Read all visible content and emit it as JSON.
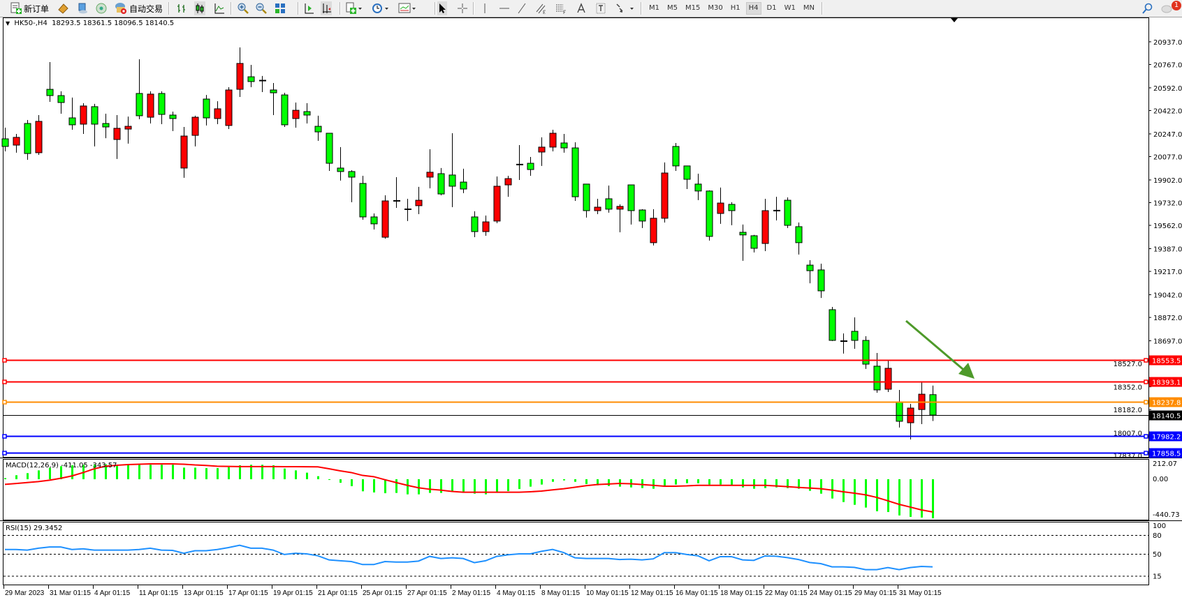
{
  "toolbar": {
    "new_order": "新订单",
    "auto_trading": "自动交易",
    "timeframes": [
      "M1",
      "M5",
      "M15",
      "M30",
      "H1",
      "H4",
      "D1",
      "W1",
      "MN"
    ],
    "active_timeframe": "H4",
    "notification_count": "1"
  },
  "chart": {
    "header": "HK50-,H4  18293.5 18361.5 18096.5 18140.5"
  },
  "chart_data": {
    "type": "candlestick",
    "symbol": "HK50-",
    "timeframe": "H4",
    "colors": {
      "up": "#ff0000",
      "down": "#00ff00",
      "outline": "#000000"
    },
    "candles": [
      [
        20210,
        20294,
        20116,
        20153
      ],
      [
        20163,
        20247,
        20106,
        20221
      ],
      [
        20325,
        20351,
        20053,
        20100
      ],
      [
        20106,
        20388,
        20090,
        20341
      ],
      [
        20581,
        20785,
        20487,
        20534
      ],
      [
        20534,
        20566,
        20398,
        20482
      ],
      [
        20367,
        20519,
        20278,
        20315
      ],
      [
        20320,
        20477,
        20247,
        20456
      ],
      [
        20451,
        20472,
        20153,
        20320
      ],
      [
        20325,
        20398,
        20215,
        20299
      ],
      [
        20205,
        20388,
        20059,
        20289
      ],
      [
        20283,
        20377,
        20174,
        20304
      ],
      [
        20550,
        20806,
        20357,
        20383
      ],
      [
        20372,
        20566,
        20325,
        20545
      ],
      [
        20550,
        20566,
        20320,
        20393
      ],
      [
        20388,
        20414,
        20268,
        20362
      ],
      [
        19991,
        20299,
        19918,
        20231
      ],
      [
        20236,
        20383,
        20153,
        20372
      ],
      [
        20508,
        20539,
        20310,
        20367
      ],
      [
        20362,
        20492,
        20320,
        20435
      ],
      [
        20310,
        20597,
        20283,
        20576
      ],
      [
        20581,
        20895,
        20524,
        20775
      ],
      [
        20675,
        20764,
        20597,
        20639
      ],
      [
        20639,
        20681,
        20560,
        20649
      ],
      [
        20576,
        20628,
        20388,
        20555
      ],
      [
        20539,
        20555,
        20299,
        20315
      ],
      [
        20362,
        20482,
        20294,
        20424
      ],
      [
        20414,
        20477,
        20325,
        20388
      ],
      [
        20304,
        20383,
        20195,
        20262
      ],
      [
        20252,
        20252,
        19970,
        20027
      ],
      [
        19991,
        20148,
        19897,
        19965
      ],
      [
        19965,
        19975,
        19735,
        19923
      ],
      [
        19876,
        19933,
        19604,
        19625
      ],
      [
        19625,
        19651,
        19531,
        19573
      ],
      [
        19473,
        19787,
        19462,
        19745
      ],
      [
        19748,
        19923,
        19693,
        19745
      ],
      [
        19685,
        19761,
        19594,
        19680
      ],
      [
        19709,
        19850,
        19646,
        19750
      ],
      [
        19923,
        20132,
        19839,
        19960
      ],
      [
        19949,
        19991,
        19787,
        19797
      ],
      [
        19939,
        20252,
        19698,
        19855
      ],
      [
        19886,
        19986,
        19803,
        19834
      ],
      [
        19625,
        19667,
        19473,
        19515
      ],
      [
        19515,
        19635,
        19484,
        19588
      ],
      [
        19594,
        19928,
        19578,
        19855
      ],
      [
        19865,
        19933,
        19776,
        19912
      ],
      [
        20020,
        20163,
        19902,
        20015
      ],
      [
        20027,
        20074,
        19933,
        19980
      ],
      [
        20111,
        20221,
        20007,
        20148
      ],
      [
        20148,
        20278,
        20116,
        20252
      ],
      [
        20179,
        20247,
        20106,
        20142
      ],
      [
        20142,
        20184,
        19745,
        19776
      ],
      [
        19871,
        19871,
        19620,
        19672
      ],
      [
        19672,
        19761,
        19646,
        19698
      ],
      [
        19761,
        19860,
        19657,
        19683
      ],
      [
        19683,
        19719,
        19510,
        19704
      ],
      [
        19865,
        19865,
        19568,
        19672
      ],
      [
        19677,
        19683,
        19542,
        19594
      ],
      [
        19432,
        19683,
        19411,
        19615
      ],
      [
        19615,
        20033,
        19583,
        19954
      ],
      [
        20153,
        20179,
        19970,
        20007
      ],
      [
        20007,
        20007,
        19834,
        19907
      ],
      [
        19871,
        19949,
        19751,
        19819
      ],
      [
        19819,
        19824,
        19448,
        19479
      ],
      [
        19651,
        19845,
        19573,
        19729
      ],
      [
        19719,
        19735,
        19563,
        19672
      ],
      [
        19510,
        19568,
        19296,
        19490
      ],
      [
        19484,
        19490,
        19359,
        19390
      ],
      [
        19426,
        19761,
        19369,
        19672
      ],
      [
        19675,
        19776,
        19599,
        19670
      ],
      [
        19750,
        19771,
        19542,
        19562
      ],
      [
        19552,
        19583,
        19343,
        19432
      ],
      [
        19264,
        19301,
        19128,
        19222
      ],
      [
        19228,
        19275,
        19018,
        19071
      ],
      [
        18930,
        18951,
        18695,
        18700
      ],
      [
        18697,
        18752,
        18601,
        18692
      ],
      [
        18768,
        18872,
        18637,
        18700
      ],
      [
        18700,
        18731,
        18486,
        18522
      ],
      [
        18507,
        18606,
        18308,
        18329
      ],
      [
        18334,
        18548,
        18313,
        18491
      ],
      [
        18240,
        18329,
        18047,
        18094
      ],
      [
        18083,
        18224,
        17958,
        18193
      ],
      [
        18182,
        18392,
        18073,
        18297
      ],
      [
        18293.5,
        18361.5,
        18096.5,
        18140.5
      ]
    ],
    "price_ticks": [
      "20937.0",
      "20767.0",
      "20592.0",
      "20422.0",
      "20247.0",
      "20077.0",
      "19902.0",
      "19732.0",
      "19562.0",
      "19387.0",
      "19217.0",
      "19042.0",
      "18872.0",
      "18697.0",
      "18527.0",
      "18352.0",
      "18182.0",
      "18007.0",
      "17837.0"
    ],
    "date_labels": [
      "29 Mar 2023",
      "31 Mar 01:15",
      "4 Apr 01:15",
      "11 Apr 01:15",
      "13 Apr 01:15",
      "17 Apr 01:15",
      "19 Apr 01:15",
      "21 Apr 01:15",
      "25 Apr 01:15",
      "27 Apr 01:15",
      "2 May 01:15",
      "4 May 01:15",
      "8 May 01:15",
      "10 May 01:15",
      "12 May 01:15",
      "16 May 01:15",
      "18 May 01:15",
      "22 May 01:15",
      "24 May 01:15",
      "29 May 01:15",
      "31 May 01:15"
    ],
    "horizontal_lines": [
      {
        "label": "18553.5",
        "price": 18553.5,
        "color": "#ff0000"
      },
      {
        "label": "18393.1",
        "price": 18393.1,
        "color": "#ff0000"
      },
      {
        "label": "18237.8",
        "price": 18237.8,
        "color": "#ff8c00"
      },
      {
        "label": "17982.2",
        "price": 17982.2,
        "color": "#0000ff"
      },
      {
        "label": "17858.5",
        "price": 17858.5,
        "color": "#0000ff"
      }
    ],
    "current_price": {
      "label": "18140.5",
      "price": 18140.5,
      "color": "#000000"
    },
    "arrow_annotation": {
      "color": "#4e9a2a",
      "direction": "down-right"
    },
    "macd": {
      "label": "MACD(12,26,9) -411.05 -343.57",
      "scale_labels": [
        "212.07",
        "0.00",
        "-440.73"
      ],
      "range": [
        -440.73,
        212.07
      ],
      "histogram_color": "#00ff00",
      "signal_color": "#ff0000",
      "histogram": [
        12,
        42,
        64,
        93,
        120,
        137,
        147,
        152,
        157,
        157,
        152,
        152,
        152,
        152,
        152,
        152,
        122,
        122,
        117,
        117,
        127,
        147,
        152,
        152,
        147,
        112,
        93,
        69,
        32,
        -2,
        -37,
        -73,
        -127,
        -139,
        -147,
        -144,
        -159,
        -159,
        -144,
        -144,
        -132,
        -132,
        -152,
        -159,
        -132,
        -125,
        -103,
        -78,
        -56,
        -27,
        -12,
        -27,
        -51,
        -64,
        -71,
        -78,
        -86,
        -93,
        -100,
        -78,
        -56,
        -42,
        -42,
        -56,
        -56,
        -64,
        -86,
        -100,
        -93,
        -86,
        -93,
        -100,
        -122,
        -152,
        -203,
        -240,
        -269,
        -298,
        -337,
        -345,
        -381,
        -396,
        -403,
        -411.05
      ],
      "signal": [
        -54,
        -45,
        -35,
        -25,
        -10,
        10,
        35,
        70,
        110,
        137,
        147,
        154,
        158,
        161,
        161,
        161,
        158,
        150,
        145,
        137,
        135,
        133,
        133,
        133,
        133,
        132,
        132,
        131,
        130,
        110,
        88,
        70,
        40,
        27,
        -5,
        -35,
        -64,
        -90,
        -105,
        -115,
        -128,
        -137,
        -137,
        -137,
        -137,
        -137,
        -137,
        -132,
        -125,
        -112,
        -100,
        -84,
        -68,
        -56,
        -50,
        -44,
        -48,
        -56,
        -64,
        -73,
        -73,
        -70,
        -64,
        -64,
        -64,
        -64,
        -64,
        -64,
        -64,
        -71,
        -78,
        -86,
        -93,
        -100,
        -115,
        -132,
        -147,
        -164,
        -191,
        -227,
        -264,
        -293,
        -323,
        -343.57
      ]
    },
    "rsi": {
      "label": "RSI(15) 29.3452",
      "levels": [
        80,
        50,
        15
      ],
      "scale_labels": [
        "100",
        "80",
        "50",
        "15"
      ],
      "color": "#1e90ff",
      "values": [
        57,
        57,
        56,
        59,
        61,
        61,
        57,
        58,
        56,
        56,
        56,
        56,
        57,
        59,
        56,
        55.5,
        51,
        55,
        55,
        57,
        60,
        63.7,
        59,
        59,
        56,
        49,
        51,
        50,
        47,
        40.4,
        39,
        37.8,
        33,
        33,
        37.8,
        37,
        37,
        38.5,
        46,
        42.6,
        43.7,
        42.6,
        36,
        39,
        46,
        48.5,
        50,
        50,
        54,
        57,
        52,
        43.7,
        42.6,
        42.6,
        42.6,
        41,
        41.5,
        40.4,
        42,
        52,
        52,
        49,
        47,
        39,
        45.6,
        45.6,
        40.4,
        39.6,
        46.7,
        46.3,
        44,
        41,
        36.3,
        34.4,
        29.3,
        29.3,
        28.5,
        24.9,
        24.9,
        28.2,
        24.9,
        28.2,
        30,
        29.3452
      ]
    }
  }
}
